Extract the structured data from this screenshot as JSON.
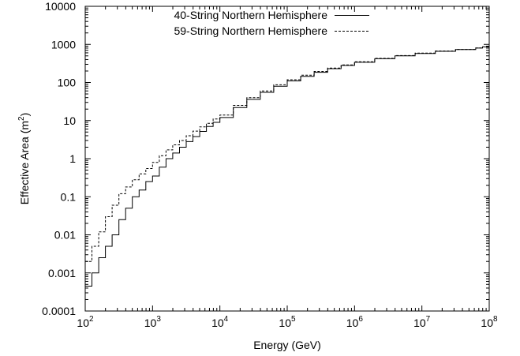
{
  "chart_data": {
    "type": "line",
    "title": "",
    "xlabel": "Energy (GeV)",
    "ylabel_base": "Effective Area (m",
    "ylabel_sup": "2",
    "ylabel_end": ")",
    "x_scale": "log",
    "y_scale": "log",
    "xlim": [
      100,
      100000000
    ],
    "ylim": [
      0.0001,
      10000
    ],
    "grid": false,
    "legend_position": "top-center",
    "x_ticks": [
      {
        "base": "10",
        "exp": "2"
      },
      {
        "base": "10",
        "exp": "3"
      },
      {
        "base": "10",
        "exp": "4"
      },
      {
        "base": "10",
        "exp": "5"
      },
      {
        "base": "10",
        "exp": "6"
      },
      {
        "base": "10",
        "exp": "7"
      },
      {
        "base": "10",
        "exp": "8"
      }
    ],
    "y_ticks": [
      "0.0001",
      "0.001",
      "0.01",
      "0.1",
      "1",
      "10",
      "100",
      "1000",
      "10000"
    ],
    "series": [
      {
        "name": "40-String Northern Hemisphere",
        "style": "solid",
        "x_log10": [
          2.0,
          2.1,
          2.2,
          2.3,
          2.4,
          2.5,
          2.6,
          2.7,
          2.8,
          2.9,
          3.0,
          3.1,
          3.2,
          3.3,
          3.4,
          3.5,
          3.6,
          3.7,
          3.8,
          3.9,
          4.0,
          4.2,
          4.4,
          4.6,
          4.8,
          5.0,
          5.2,
          5.4,
          5.6,
          5.8,
          6.0,
          6.3,
          6.6,
          6.9,
          7.2,
          7.5,
          7.8,
          7.9,
          8.0
        ],
        "y": [
          0.00045,
          0.001,
          0.0025,
          0.005,
          0.01,
          0.025,
          0.05,
          0.1,
          0.15,
          0.25,
          0.35,
          0.6,
          1.0,
          1.4,
          2.0,
          2.8,
          3.8,
          5.2,
          7.0,
          9.0,
          12,
          22,
          36,
          55,
          80,
          110,
          145,
          185,
          230,
          280,
          340,
          420,
          500,
          580,
          660,
          730,
          800,
          860,
          900
        ]
      },
      {
        "name": "59-String Northern Hemisphere",
        "style": "dashed",
        "x_log10": [
          2.0,
          2.1,
          2.2,
          2.3,
          2.4,
          2.5,
          2.6,
          2.7,
          2.8,
          2.9,
          3.0,
          3.1,
          3.2,
          3.3,
          3.4,
          3.5,
          3.6,
          3.7,
          3.8,
          3.9,
          4.0,
          4.2,
          4.4,
          4.6,
          4.8,
          5.0,
          5.2,
          5.4,
          5.6,
          5.8,
          6.0,
          6.3,
          6.6,
          6.9,
          7.2,
          7.5,
          7.8,
          7.9,
          8.0
        ],
        "y": [
          0.002,
          0.005,
          0.012,
          0.03,
          0.06,
          0.12,
          0.18,
          0.28,
          0.4,
          0.55,
          0.8,
          1.2,
          1.7,
          2.3,
          3.0,
          4.0,
          5.3,
          6.8,
          8.5,
          11,
          14,
          25,
          40,
          60,
          87,
          118,
          155,
          195,
          240,
          290,
          350,
          430,
          510,
          590,
          670,
          740,
          810,
          860,
          900
        ]
      }
    ]
  }
}
